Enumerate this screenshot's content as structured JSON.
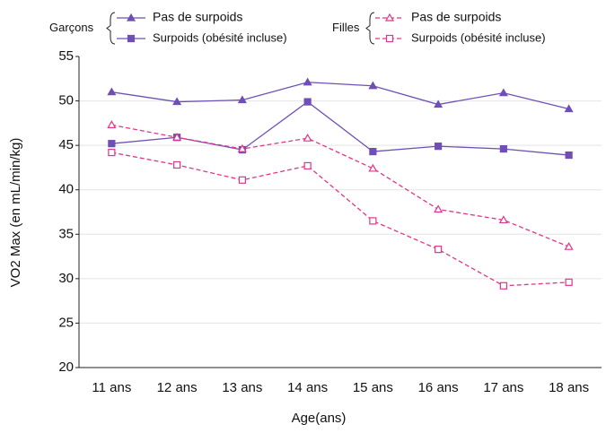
{
  "chart_data": {
    "type": "line",
    "categories": [
      "11 ans",
      "12 ans",
      "13 ans",
      "14 ans",
      "15 ans",
      "16 ans",
      "17 ans",
      "18 ans"
    ],
    "series": [
      {
        "name": "Pas de surpoids",
        "group": "Garçons",
        "color": "#6f4fb5",
        "marker": "triangle",
        "filled": true,
        "dashed": false,
        "values": [
          51.0,
          49.9,
          50.1,
          52.1,
          51.7,
          49.6,
          50.9,
          49.1
        ]
      },
      {
        "name": "Surpoids (obésité incluse)",
        "group": "Garçons",
        "color": "#6f4fb5",
        "marker": "square",
        "filled": true,
        "dashed": false,
        "values": [
          45.2,
          45.9,
          44.5,
          49.9,
          44.3,
          44.9,
          44.6,
          43.9
        ]
      },
      {
        "name": "Pas de surpoids",
        "group": "Filles",
        "color": "#e0358a",
        "marker": "triangle",
        "filled": false,
        "dashed": true,
        "values": [
          47.3,
          45.9,
          44.6,
          45.8,
          42.4,
          37.8,
          36.6,
          33.6
        ]
      },
      {
        "name": "Surpoids (obésité incluse)",
        "group": "Filles",
        "color": "#e0358a",
        "marker": "square",
        "filled": false,
        "dashed": true,
        "values": [
          44.2,
          42.8,
          41.1,
          42.7,
          36.5,
          33.3,
          29.2,
          29.6
        ]
      }
    ],
    "xlabel": "Age(ans)",
    "ylabel": "VO2 Max (en mL/min/kg)",
    "ylim": [
      20,
      55
    ],
    "yticks": [
      20,
      25,
      30,
      35,
      40,
      45,
      50,
      55
    ],
    "grid": true
  }
}
